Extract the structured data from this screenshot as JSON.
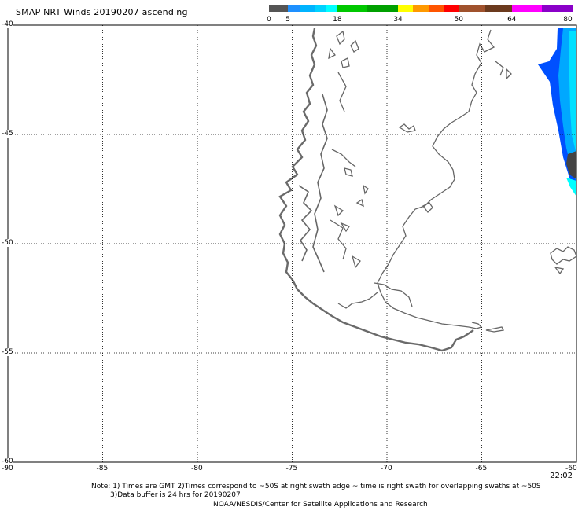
{
  "header": {
    "title": "SMAP NRT Winds 20190207 ascending"
  },
  "colorbar": {
    "segments": [
      {
        "from": 0,
        "to": 5,
        "color": "#555555"
      },
      {
        "from": 5,
        "to": 8,
        "color": "#1e90ff"
      },
      {
        "from": 8,
        "to": 12,
        "color": "#00b4ff"
      },
      {
        "from": 12,
        "to": 15,
        "color": "#00d2ff"
      },
      {
        "from": 15,
        "to": 18,
        "color": "#00ffff"
      },
      {
        "from": 18,
        "to": 26,
        "color": "#00c800"
      },
      {
        "from": 26,
        "to": 34,
        "color": "#00a000"
      },
      {
        "from": 34,
        "to": 38,
        "color": "#ffff00"
      },
      {
        "from": 38,
        "to": 42,
        "color": "#ff9900"
      },
      {
        "from": 42,
        "to": 46,
        "color": "#ff5500"
      },
      {
        "from": 46,
        "to": 50,
        "color": "#ff0000"
      },
      {
        "from": 50,
        "to": 57,
        "color": "#a0522d"
      },
      {
        "from": 57,
        "to": 64,
        "color": "#6b3a1e"
      },
      {
        "from": 64,
        "to": 72,
        "color": "#ff00ff"
      },
      {
        "from": 72,
        "to": 80,
        "color": "#8a00c8"
      }
    ],
    "tick_labels": [
      "0",
      "5",
      "18",
      "34",
      "50",
      "64",
      "80"
    ],
    "tick_values": [
      0,
      5,
      18,
      34,
      50,
      64,
      80
    ]
  },
  "map": {
    "lon_range": [
      -90,
      -60
    ],
    "lat_range": [
      -60,
      -40
    ],
    "lon_ticks": [
      -90,
      -85,
      -80,
      -75,
      -70,
      -65,
      -60
    ],
    "lat_ticks": [
      -40,
      -45,
      -50,
      -55,
      -60
    ],
    "lon_labels": [
      "-90",
      "-85",
      "-80",
      "-75",
      "-70",
      "-65",
      "-60"
    ],
    "lat_labels": [
      "-40",
      "-45",
      "-50",
      "-55",
      "-60"
    ],
    "grid": "dotted",
    "swath_colors": [
      "#0044ff",
      "#1e90ff",
      "#00b4ff",
      "#00ffff",
      "#555555"
    ]
  },
  "time_label": "22:02",
  "footer": {
    "note_line1": "Note: 1) Times are GMT 2)Times correspond to ~50S at right swath edge ~ time is right swath for overlapping swaths at ~50S",
    "note_line2": "3)Data buffer is 24 hrs for 20190207",
    "credit": "NOAA/NESDIS/Center for Satellite Applications and Research"
  }
}
